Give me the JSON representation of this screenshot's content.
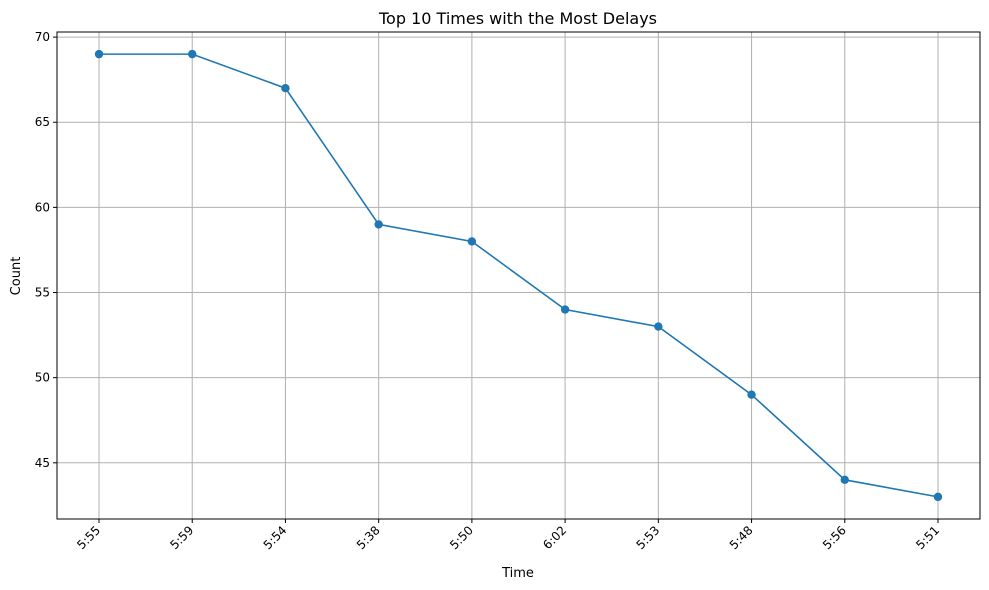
{
  "chart_data": {
    "type": "line",
    "title": "Top 10 Times with the Most Delays",
    "xlabel": "Time",
    "ylabel": "Count",
    "categories": [
      "5:55",
      "5:59",
      "5:54",
      "5:38",
      "5:50",
      "6:02",
      "5:53",
      "5:48",
      "5:56",
      "5:51"
    ],
    "series": [
      {
        "values": [
          69,
          69,
          67,
          59,
          58,
          54,
          53,
          49,
          44,
          43
        ]
      }
    ],
    "ylim": [
      41.7,
      70.3
    ],
    "yticks": [
      45,
      50,
      55,
      60,
      65,
      70
    ],
    "grid": true,
    "line_color": "#1f77b4",
    "marker": "circle"
  }
}
